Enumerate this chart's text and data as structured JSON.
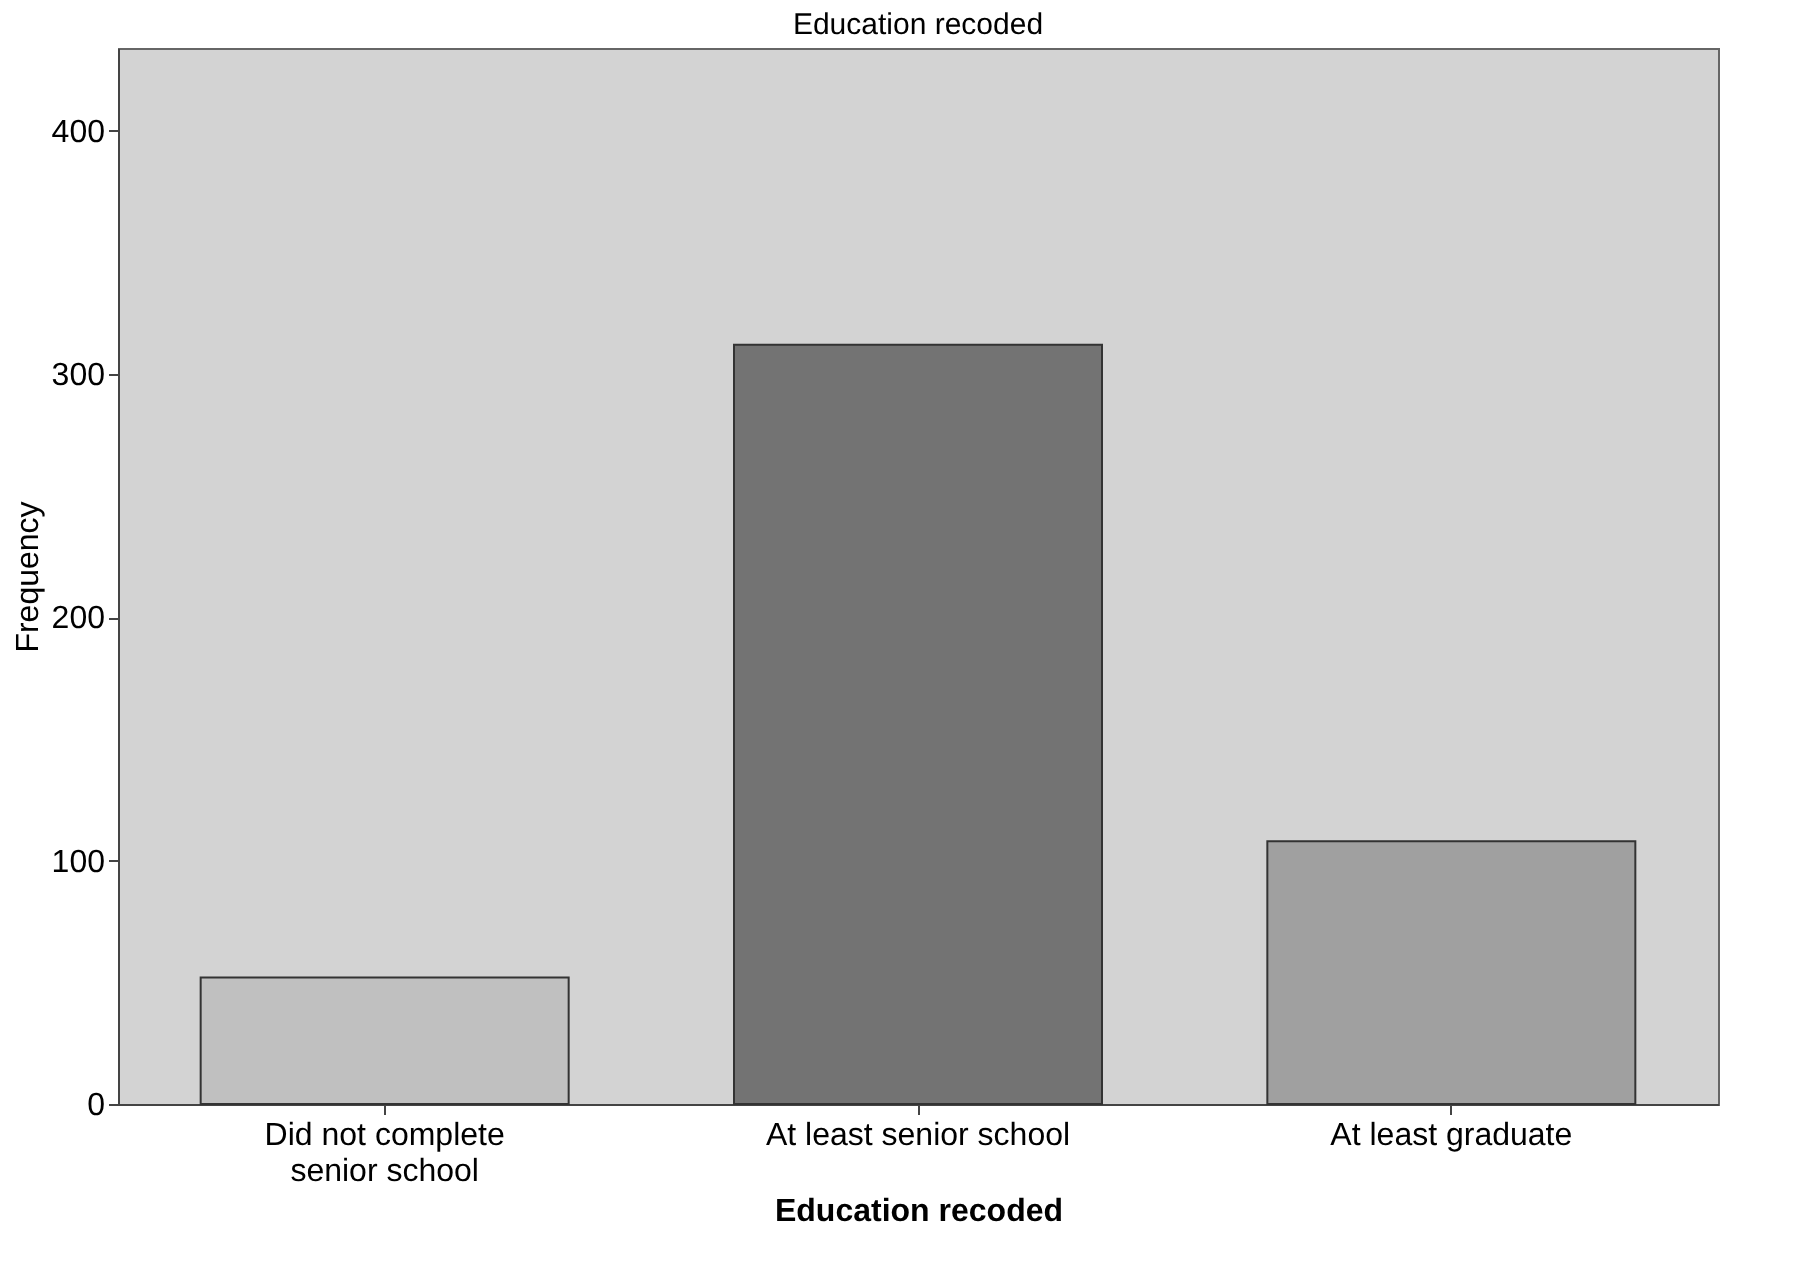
{
  "chart_data": {
    "type": "bar",
    "title": "Education recoded",
    "xlabel": "Education recoded",
    "ylabel": "Frequency",
    "categories": [
      "Did not complete senior school",
      "At least senior school",
      "At least graduate"
    ],
    "values": [
      52,
      312,
      108
    ],
    "colors": [
      "#c0c0c0",
      "#737373",
      "#a0a0a0"
    ],
    "ylim": [
      0,
      434
    ],
    "yticks": [
      0,
      100,
      200,
      300,
      400
    ],
    "grid": false,
    "legend": false
  }
}
